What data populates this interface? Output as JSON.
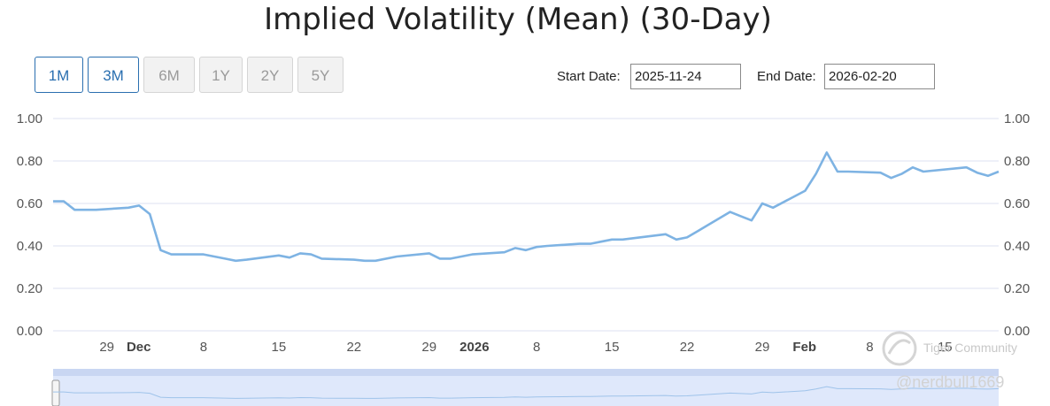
{
  "header": {
    "title": "Implied Volatility (Mean) (30-Day)"
  },
  "range_buttons": [
    {
      "label": "1M",
      "state": "active"
    },
    {
      "label": "3M",
      "state": "active"
    },
    {
      "label": "6M",
      "state": "disabled"
    },
    {
      "label": "1Y",
      "state": "disabled"
    },
    {
      "label": "2Y",
      "state": "disabled"
    },
    {
      "label": "5Y",
      "state": "disabled"
    }
  ],
  "date_range": {
    "start_label": "Start Date:",
    "start_value": "2025-11-24",
    "end_label": "End Date:",
    "end_value": "2026-02-20"
  },
  "watermark": {
    "brand": "Tiger Community",
    "user": "@nerdbull1669"
  },
  "colors": {
    "line": "#7eb3e3",
    "grid": "#dde1f0",
    "accent": "#2a6fb0",
    "navigator": "#dfe8fb"
  },
  "chart_data": {
    "type": "line",
    "title": "Implied Volatility (Mean) (30-Day)",
    "xlabel": "",
    "ylabel": "",
    "x_tick_labels": [
      {
        "date": "2025-11-29",
        "label": "29"
      },
      {
        "date": "2025-12-01",
        "label": "Dec",
        "bold": true
      },
      {
        "date": "2025-12-08",
        "label": "8"
      },
      {
        "date": "2025-12-15",
        "label": "15"
      },
      {
        "date": "2025-12-22",
        "label": "22"
      },
      {
        "date": "2025-12-29",
        "label": "29"
      },
      {
        "date": "2026-01-01",
        "label": "2026",
        "bold": true
      },
      {
        "date": "2026-01-08",
        "label": "8"
      },
      {
        "date": "2026-01-15",
        "label": "15"
      },
      {
        "date": "2026-01-22",
        "label": "22"
      },
      {
        "date": "2026-01-29",
        "label": "29"
      },
      {
        "date": "2026-02-01",
        "label": "Feb",
        "bold": true
      },
      {
        "date": "2026-02-08",
        "label": "8"
      },
      {
        "date": "2026-02-15",
        "label": "15"
      }
    ],
    "y_tick_labels": [
      "0.00",
      "0.20",
      "0.40",
      "0.60",
      "0.80",
      "1.00"
    ],
    "ylim": [
      0,
      1
    ],
    "xlim": [
      "2025-11-24",
      "2026-02-20"
    ],
    "grid": true,
    "legend": "none",
    "navigator": true,
    "series": [
      {
        "x": [
          "2025-11-24",
          "2025-11-25",
          "2025-11-26",
          "2025-11-28",
          "2025-12-01",
          "2025-12-02",
          "2025-12-03",
          "2025-12-04",
          "2025-12-05",
          "2025-12-08",
          "2025-12-09",
          "2025-12-10",
          "2025-12-11",
          "2025-12-12",
          "2025-12-15",
          "2025-12-16",
          "2025-12-17",
          "2025-12-18",
          "2025-12-19",
          "2025-12-22",
          "2025-12-23",
          "2025-12-24",
          "2025-12-26",
          "2025-12-29",
          "2025-12-30",
          "2025-12-31",
          "2026-01-02",
          "2026-01-05",
          "2026-01-06",
          "2026-01-07",
          "2026-01-08",
          "2026-01-09",
          "2026-01-12",
          "2026-01-13",
          "2026-01-14",
          "2026-01-15",
          "2026-01-16",
          "2026-01-20",
          "2026-01-21",
          "2026-01-22",
          "2026-01-23",
          "2026-01-26",
          "2026-01-27",
          "2026-01-28",
          "2026-01-29",
          "2026-01-30",
          "2026-02-02",
          "2026-02-03",
          "2026-02-04",
          "2026-02-05",
          "2026-02-06",
          "2026-02-09",
          "2026-02-10",
          "2026-02-11",
          "2026-02-12",
          "2026-02-13",
          "2026-02-17",
          "2026-02-18",
          "2026-02-19",
          "2026-02-20"
        ],
        "values": [
          0.61,
          0.61,
          0.57,
          0.57,
          0.58,
          0.59,
          0.55,
          0.38,
          0.36,
          0.36,
          0.35,
          0.34,
          0.33,
          0.335,
          0.355,
          0.345,
          0.365,
          0.36,
          0.34,
          0.335,
          0.33,
          0.33,
          0.35,
          0.365,
          0.34,
          0.34,
          0.36,
          0.37,
          0.39,
          0.38,
          0.395,
          0.4,
          0.41,
          0.41,
          0.42,
          0.43,
          0.43,
          0.455,
          0.43,
          0.44,
          0.47,
          0.56,
          0.54,
          0.52,
          0.6,
          0.58,
          0.66,
          0.74,
          0.84,
          0.75,
          0.75,
          0.745,
          0.72,
          0.74,
          0.77,
          0.75,
          0.77,
          0.745,
          0.73,
          0.75
        ]
      }
    ]
  }
}
